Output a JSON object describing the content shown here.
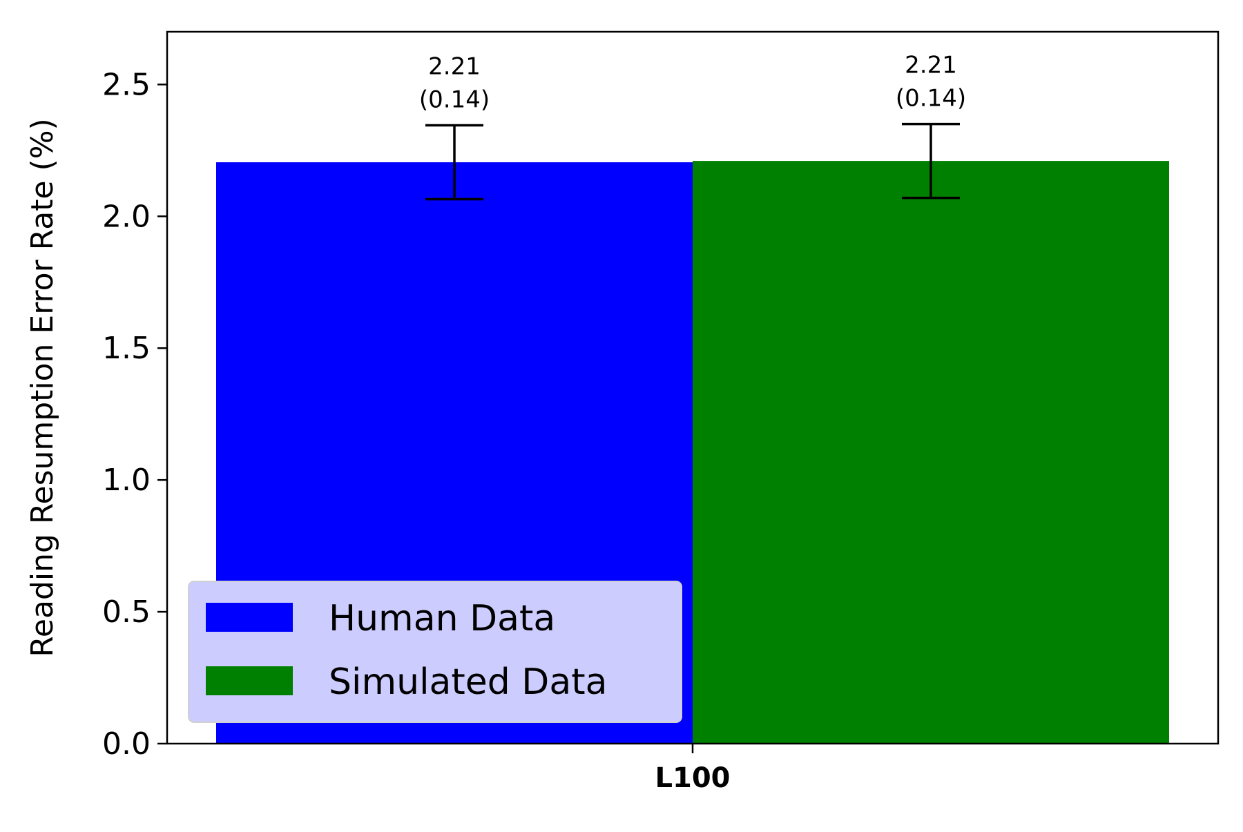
{
  "chart_data": {
    "type": "bar",
    "categories": [
      "L100"
    ],
    "series": [
      {
        "name": "Human Data",
        "values": [
          2.205
        ],
        "errors": [
          0.14
        ],
        "value_label": "2.21",
        "error_label": "(0.14)",
        "color": "#0000ff"
      },
      {
        "name": "Simulated Data",
        "values": [
          2.21
        ],
        "errors": [
          0.14
        ],
        "value_label": "2.21",
        "error_label": "(0.14)",
        "color": "#008000"
      }
    ],
    "title": "",
    "xlabel": "",
    "ylabel": "Reading Resumption Error Rate (%)",
    "ylim": [
      0,
      2.7
    ],
    "yticks": [
      "0.0",
      "0.5",
      "1.0",
      "1.5",
      "2.0",
      "2.5"
    ],
    "grid": false,
    "legend_position": "lower-left",
    "legend_background": "#ccccff"
  }
}
